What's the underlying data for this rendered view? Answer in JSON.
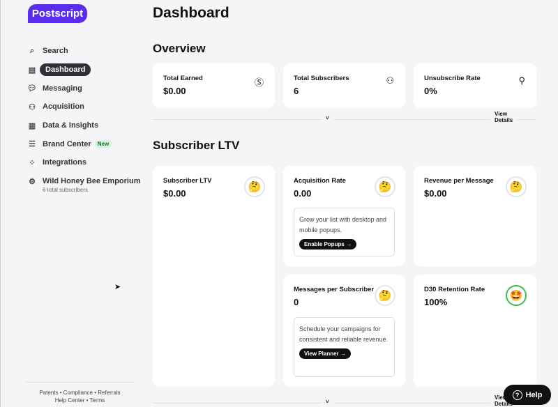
{
  "brand": {
    "logo": "Postscript",
    "color": "#5a2cf0"
  },
  "sidebar": {
    "items": [
      {
        "label": "Search",
        "icon": "search-icon"
      },
      {
        "label": "Dashboard",
        "icon": "layout-icon",
        "active": true
      },
      {
        "label": "Messaging",
        "icon": "chat-icon"
      },
      {
        "label": "Acquisition",
        "icon": "user-plus-icon"
      },
      {
        "label": "Data & Insights",
        "icon": "bar-chart-icon"
      },
      {
        "label": "Brand Center",
        "icon": "sliders-icon",
        "badge": "New"
      },
      {
        "label": "Integrations",
        "icon": "apps-icon"
      },
      {
        "label": "Wild Honey Bee Emporium",
        "icon": "gear-icon",
        "sub": "6 total subscribers"
      }
    ],
    "footer": {
      "patents": "Patents",
      "compliance": "Compliance",
      "referrals": "Referrals",
      "help_center": "Help Center",
      "terms": "Terms"
    }
  },
  "main": {
    "title": "Dashboard",
    "overview": {
      "title": "Overview",
      "view_details": "View Details",
      "cards": [
        {
          "title": "Total Earned",
          "value": "$0.00",
          "icon": "dollar-circle-icon"
        },
        {
          "title": "Total Subscribers",
          "value": "6",
          "icon": "users-icon"
        },
        {
          "title": "Unsubscribe Rate",
          "value": "0%",
          "icon": "user-minus-icon"
        }
      ]
    },
    "ltv": {
      "title": "Subscriber LTV",
      "view_details": "View Details",
      "cards": [
        {
          "title": "Subscriber LTV",
          "value": "$0.00",
          "emoji": "🤔"
        },
        {
          "title": "Acquisition Rate",
          "value": "0.00",
          "emoji": "🤔",
          "tip": "Grow your list with desktop and mobile popups.",
          "button": "Enable Popups →"
        },
        {
          "title": "Revenue per Message",
          "value": "$0.00",
          "emoji": "🤔"
        },
        {
          "title": "Messages per Subscriber",
          "value": "0",
          "emoji": "🤔",
          "tip": "Schedule your campaigns for consistent and reliable revenue.",
          "button": "View Planner →"
        },
        {
          "title": "D30 Retention Rate",
          "value": "100%",
          "emoji": "🤩"
        }
      ]
    }
  },
  "help": {
    "label": "Help",
    "icon": "question-circle-icon"
  }
}
